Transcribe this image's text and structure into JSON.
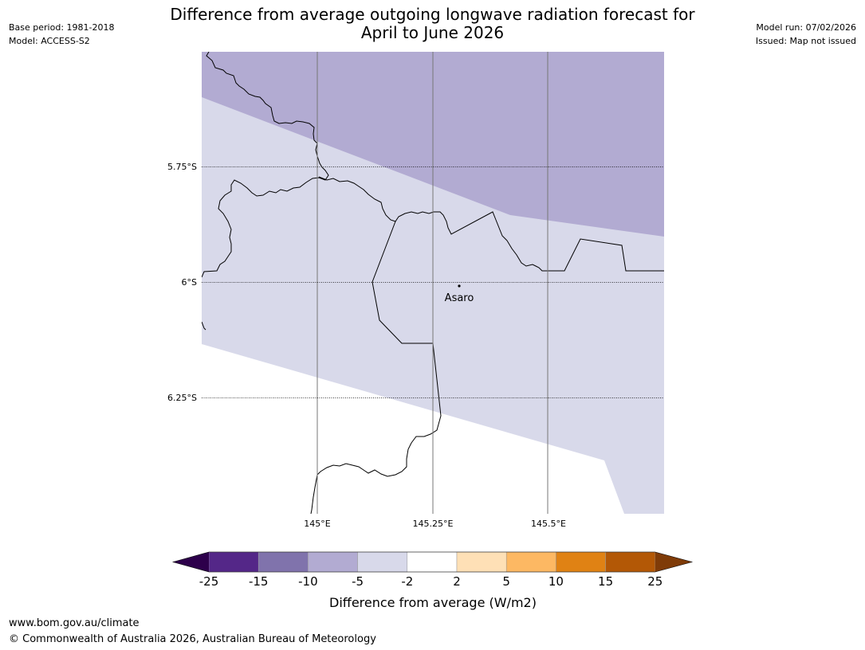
{
  "header": {
    "title_line1": "Difference from average outgoing longwave radiation forecast for",
    "title_line2": "April to June 2026",
    "base_period": "Base period: 1981-2018",
    "model": "Model: ACCESS-S2",
    "model_run": "Model run: 07/02/2026",
    "issued": "Issued: Map not issued"
  },
  "map": {
    "lat_labels": [
      "5.75°S",
      "6°S",
      "6.25°S"
    ],
    "lon_labels": [
      "145°E",
      "145.25°E",
      "145.5°E"
    ],
    "place": {
      "name": "Asaro"
    },
    "region_colors": {
      "strong": "#b2abd2",
      "weak": "#d8d9ea",
      "neutral": "#ffffff"
    }
  },
  "legend": {
    "ticks": [
      "-25",
      "-15",
      "-10",
      "-5",
      "-2",
      "2",
      "5",
      "10",
      "15",
      "25"
    ],
    "colors": [
      "#542788",
      "#8073ac",
      "#b2abd2",
      "#d8d9ea",
      "#ffffff",
      "#fee0b6",
      "#fdb863",
      "#e08214",
      "#b35806"
    ],
    "under_color": "#2d004b",
    "over_color": "#7f3b08",
    "label": "Difference from average (W/m2)"
  },
  "footer": {
    "url": "www.bom.gov.au/climate",
    "copyright": "© Commonwealth of Australia 2026, Australian Bureau of Meteorology"
  }
}
